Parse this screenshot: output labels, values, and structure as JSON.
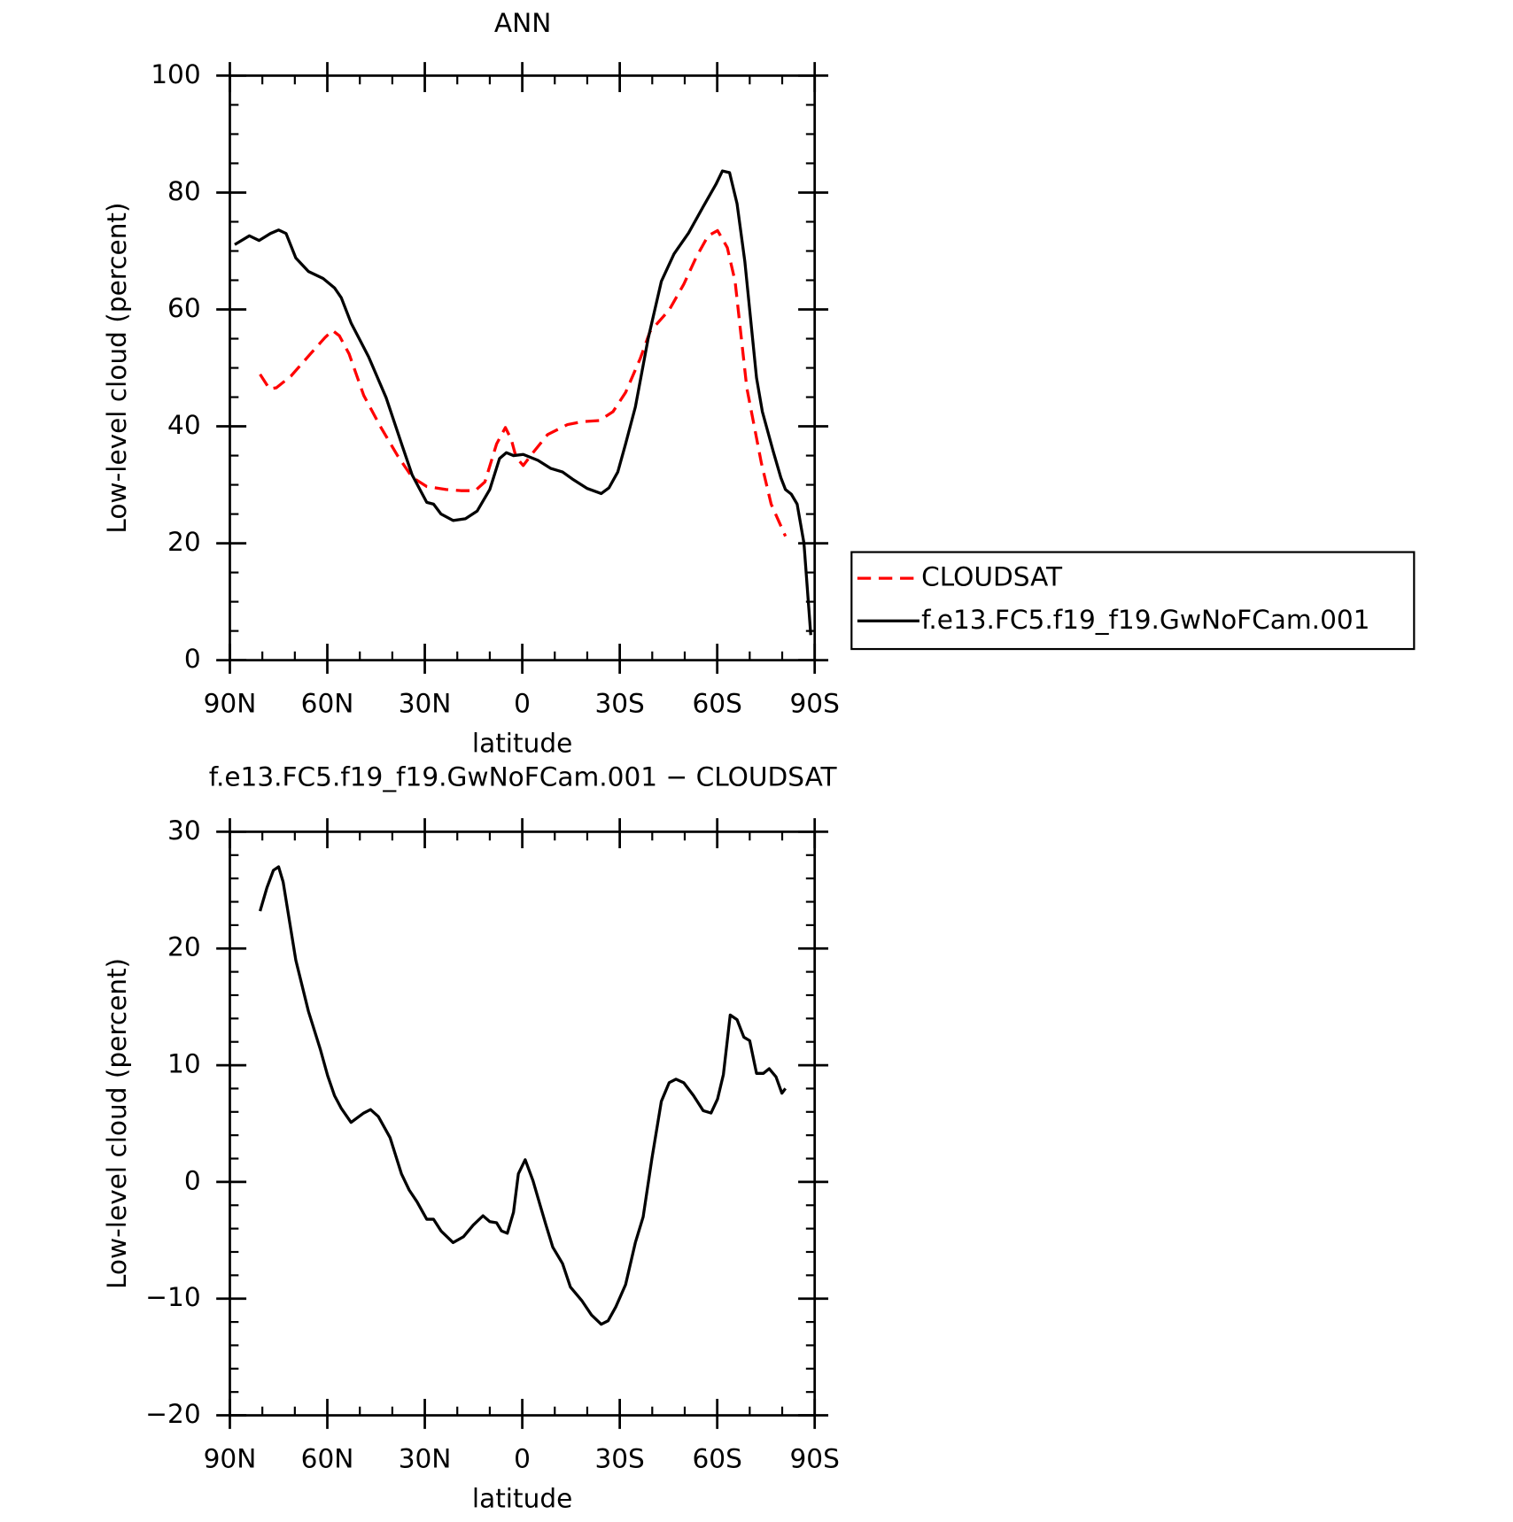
{
  "chart_data": [
    {
      "type": "line",
      "title": "ANN",
      "xlabel": "latitude",
      "ylabel": "Low-level cloud (percent)",
      "xlim": [
        90,
        -90
      ],
      "xticks": [
        {
          "value": 90,
          "label": "90N"
        },
        {
          "value": 60,
          "label": "60N"
        },
        {
          "value": 30,
          "label": "30N"
        },
        0,
        {
          "value": -30,
          "label": "30S"
        },
        {
          "value": -60,
          "label": "60S"
        },
        {
          "value": -90,
          "label": "90S"
        }
      ],
      "ylim": [
        0,
        100
      ],
      "yticks": [
        0,
        20,
        40,
        60,
        80,
        100
      ],
      "legend": "outside-right",
      "series": [
        {
          "name": "CLOUDSAT",
          "color": "#ff0000",
          "line_style": "dashed",
          "x": [
            80.7,
            77.8,
            75.7,
            71.2,
            65.2,
            60.7,
            58.4,
            56.3,
            53.3,
            48.8,
            43.7,
            38.4,
            33.9,
            29.4,
            23.4,
            18.9,
            14.5,
            11.5,
            7.9,
            5.2,
            3.4,
            1.9,
            -0.3,
            -3.3,
            -7.8,
            -13.9,
            -18.4,
            -23.7,
            -27.9,
            -31.8,
            -36.3,
            -39.3,
            -45.2,
            -49.7,
            -53.6,
            -57.2,
            -60.1,
            -63.1,
            -65.5,
            -69.1,
            -73.6,
            -76.6,
            -81.0
          ],
          "values": [
            48.9,
            46.4,
            46.6,
            48.6,
            52.4,
            55.2,
            56.4,
            55.5,
            52.4,
            45.3,
            40.0,
            35.0,
            31.3,
            29.7,
            29.2,
            29.0,
            29.0,
            30.5,
            37.0,
            39.8,
            37.8,
            34.7,
            33.3,
            35.5,
            38.6,
            40.3,
            40.8,
            41.0,
            42.5,
            45.8,
            51.6,
            56.2,
            59.9,
            64.3,
            69.0,
            72.6,
            73.5,
            70.6,
            64.8,
            46.6,
            33.7,
            26.7,
            21.2
          ]
        },
        {
          "name": "f.e13.FC5.f19_f19.GwNoFCam.001",
          "color": "#000000",
          "line_style": "solid",
          "x": [
            88.5,
            84.0,
            81.0,
            77.5,
            75.0,
            72.7,
            69.7,
            65.8,
            61.3,
            57.8,
            55.7,
            52.7,
            47.3,
            41.9,
            36.9,
            33.9,
            29.4,
            27.3,
            25.0,
            21.3,
            17.5,
            13.9,
            10.0,
            7.0,
            4.9,
            2.7,
            -0.3,
            -4.8,
            -8.8,
            -12.4,
            -15.4,
            -19.9,
            -24.3,
            -26.7,
            -29.4,
            -31.8,
            -34.8,
            -38.7,
            -42.8,
            -46.7,
            -51.2,
            -55.7,
            -59.6,
            -61.6,
            -63.8,
            -66.1,
            -68.5,
            -72.1,
            -73.9,
            -77.2,
            -79.6,
            -81.0,
            -82.8,
            -84.6,
            -86.7,
            -88.8
          ],
          "values": [
            71.1,
            72.6,
            71.8,
            73.0,
            73.6,
            73.0,
            68.8,
            66.5,
            65.3,
            63.7,
            62.0,
            57.7,
            51.9,
            44.9,
            36.6,
            31.7,
            27.0,
            26.7,
            25.0,
            23.9,
            24.2,
            25.5,
            29.2,
            34.5,
            35.5,
            35.0,
            35.2,
            34.2,
            32.8,
            32.2,
            31.0,
            29.4,
            28.5,
            29.5,
            32.2,
            37.0,
            43.3,
            54.9,
            64.8,
            69.5,
            73.1,
            77.6,
            81.4,
            83.7,
            83.4,
            78.1,
            68.2,
            48.3,
            42.5,
            35.8,
            31.2,
            29.2,
            28.4,
            26.7,
            20.0,
            4.3
          ]
        }
      ]
    },
    {
      "type": "line",
      "title": "f.e13.FC5.f19_f19.GwNoFCam.001 − CLOUDSAT",
      "xlabel": "latitude",
      "ylabel": "Low-level cloud (percent)",
      "xlim": [
        90,
        -90
      ],
      "xticks": [
        {
          "value": 90,
          "label": "90N"
        },
        {
          "value": 60,
          "label": "60N"
        },
        {
          "value": 30,
          "label": "30N"
        },
        0,
        {
          "value": -30,
          "label": "30S"
        },
        {
          "value": -60,
          "label": "60S"
        },
        {
          "value": -90,
          "label": "90S"
        }
      ],
      "ylim": [
        -20,
        30
      ],
      "yticks": [
        {
          "value": -20,
          "label": "−20"
        },
        {
          "value": -10,
          "label": "−10"
        },
        0,
        10,
        20,
        30
      ],
      "color": "#000000",
      "x": [
        80.7,
        78.6,
        76.6,
        75.0,
        73.6,
        69.7,
        65.8,
        62.2,
        59.9,
        57.8,
        55.7,
        52.7,
        48.8,
        46.7,
        44.3,
        40.7,
        37.2,
        34.8,
        32.4,
        29.4,
        27.3,
        25.0,
        21.3,
        18.1,
        15.1,
        12.1,
        10.0,
        7.9,
        6.4,
        4.6,
        2.7,
        1.2,
        -0.9,
        -3.3,
        -5.5,
        -7.3,
        -9.4,
        -12.4,
        -14.8,
        -18.4,
        -21.3,
        -24.3,
        -26.4,
        -28.8,
        -31.8,
        -34.8,
        -37.2,
        -39.9,
        -42.8,
        -45.2,
        -47.3,
        -49.7,
        -52.7,
        -55.7,
        -58.1,
        -60.1,
        -61.9,
        -64.0,
        -66.1,
        -68.2,
        -70.0,
        -72.1,
        -74.2,
        -76.0,
        -78.1,
        -79.9,
        -81.0
      ],
      "values": [
        23.2,
        25.2,
        26.7,
        27.0,
        25.7,
        19.0,
        14.6,
        11.4,
        9.1,
        7.4,
        6.3,
        5.1,
        5.9,
        6.2,
        5.6,
        3.8,
        0.7,
        -0.7,
        -1.7,
        -3.2,
        -3.2,
        -4.2,
        -5.2,
        -4.7,
        -3.7,
        -2.9,
        -3.4,
        -3.5,
        -4.2,
        -4.4,
        -2.6,
        0.7,
        1.9,
        0.1,
        -2.0,
        -3.7,
        -5.6,
        -7.0,
        -9.0,
        -10.2,
        -11.4,
        -12.2,
        -11.9,
        -10.7,
        -8.8,
        -5.2,
        -3.0,
        2.0,
        6.9,
        8.5,
        8.8,
        8.5,
        7.4,
        6.1,
        5.9,
        7.1,
        9.2,
        14.3,
        13.9,
        12.4,
        12.1,
        9.3,
        9.3,
        9.7,
        9.0,
        7.6,
        8.0
      ]
    }
  ]
}
